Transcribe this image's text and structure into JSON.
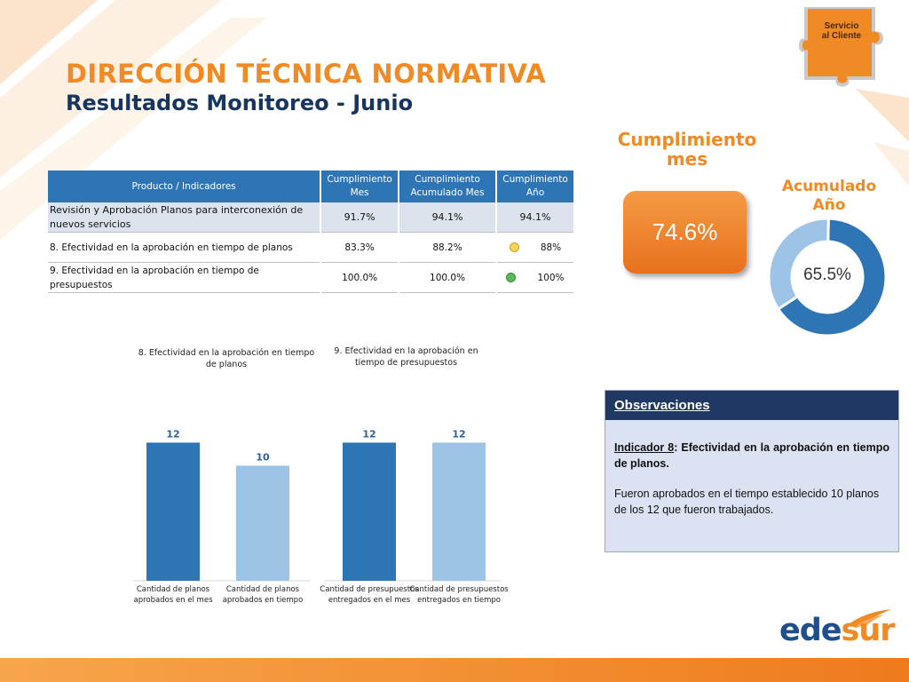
{
  "header": {
    "title": "DIRECCIÓN TÉCNICA NORMATIVA",
    "subtitle": "Resultados Monitoreo - Junio"
  },
  "badge": {
    "line1": "Servicio",
    "line2": "al Cliente",
    "icon": "puzzle-icon"
  },
  "table": {
    "headers": [
      "Producto / Indicadores",
      "Cumplimiento Mes",
      "Cumplimiento Acumulado Mes",
      "Cumplimiento Año"
    ],
    "rows": [
      {
        "name": "Revisión y Aprobación Planos para interconexión de nuevos servicios",
        "mes": "91.7%",
        "acum": "94.1%",
        "anio": "94.1%",
        "status": ""
      },
      {
        "name": "8. Efectividad en la aprobación en tiempo de planos",
        "mes": "83.3%",
        "acum": "88.2%",
        "anio": "88%",
        "status": "yellow"
      },
      {
        "name": "9. Efectividad en la aprobación en tiempo de presupuestos",
        "mes": "100.0%",
        "acum": "100.0%",
        "anio": "100%",
        "status": "green"
      }
    ],
    "status_colors": {
      "yellow": "#f7d35b",
      "green": "#5cb85c"
    }
  },
  "kpi": {
    "title_line1": "Cumplimiento",
    "title_line2": "mes",
    "value": "74.6%",
    "acum_line1": "Acumulado",
    "acum_line2": "Año",
    "acum_value": "65.5%",
    "acum_fraction": 0.655
  },
  "observations": {
    "heading": "Observaciones",
    "indicator_label": "Indicador 8",
    "indicator_text": ": Efectividad en la aprobación en tiempo de planos.",
    "body": "Fueron aprobados en el tiempo establecido 10 planos de los 12 que fueron trabajados."
  },
  "logo": {
    "part1": "ede",
    "part2": "sur"
  },
  "colors": {
    "orange": "#f08a24",
    "navy": "#17365d",
    "dark_bar": "#2e75b6",
    "light_bar": "#9dc3e6"
  },
  "chart_data": [
    {
      "type": "bar",
      "title_line1": "8. Efectividad en la aprobación en tiempo",
      "title_line2": "de planos",
      "categories": [
        "Cantidad de planos aprobados en el mes",
        "Cantidad de planos aprobados en tiempo"
      ],
      "category_lines": [
        [
          "Cantidad de planos",
          "aprobados en el mes"
        ],
        [
          "Cantidad de planos",
          "aprobados en tiempo"
        ]
      ],
      "values": [
        12,
        10
      ],
      "colors": [
        "#2e75b6",
        "#9dc3e6"
      ],
      "ylim": [
        0,
        13.5
      ]
    },
    {
      "type": "bar",
      "title_line1": "9.  Efectividad en la aprobación en",
      "title_line2": "tiempo de presupuestos",
      "categories": [
        "Cantidad de presupuestos entregados en el mes",
        "Cantidad de presupuestos entregados en tiempo"
      ],
      "category_lines": [
        [
          "Cantidad de presupuestos",
          "entregados en el mes"
        ],
        [
          "Cantidad de presupuestos",
          "entregados en tiempo"
        ]
      ],
      "values": [
        12,
        12
      ],
      "colors": [
        "#2e75b6",
        "#9dc3e6"
      ],
      "ylim": [
        0,
        13.5
      ]
    }
  ]
}
